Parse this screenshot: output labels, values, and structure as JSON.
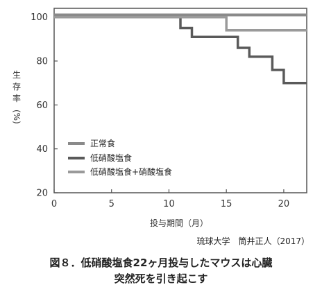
{
  "chart_data": {
    "type": "line",
    "subtype": "step",
    "xlabel": "投与期間（月）",
    "ylabel": "生存率(%)",
    "ylabel_chars": [
      "生",
      "存",
      "率",
      "(%)"
    ],
    "xlim": [
      0,
      22
    ],
    "ylim": [
      20,
      104
    ],
    "xticks": [
      0,
      5,
      10,
      15,
      20
    ],
    "yticks": [
      20,
      40,
      60,
      80,
      100
    ],
    "grid": false,
    "legend_position": "bottom-left",
    "series": [
      {
        "name": "正常食",
        "color": "#8a8a8a",
        "x": [
          0,
          22
        ],
        "y": [
          101,
          101
        ]
      },
      {
        "name": "低硝酸塩食",
        "color": "#5a5a5a",
        "x": [
          0,
          11,
          11,
          12,
          12,
          16,
          16,
          17,
          17,
          19,
          19,
          20,
          20,
          22
        ],
        "y": [
          100,
          100,
          95,
          95,
          91,
          91,
          86,
          86,
          82,
          82,
          76,
          76,
          70,
          70
        ]
      },
      {
        "name": "低硝酸塩食+硝酸塩食",
        "color": "#9a9a9a",
        "x": [
          0,
          15,
          15,
          22
        ],
        "y": [
          100,
          100,
          94,
          94
        ]
      }
    ]
  },
  "source": "琉球大学　筒井正人（2017）",
  "caption_line1": "図８．低硝酸塩食22ヶ月投与したマウスは心臓",
  "caption_line2": "突然死を引き起こす"
}
